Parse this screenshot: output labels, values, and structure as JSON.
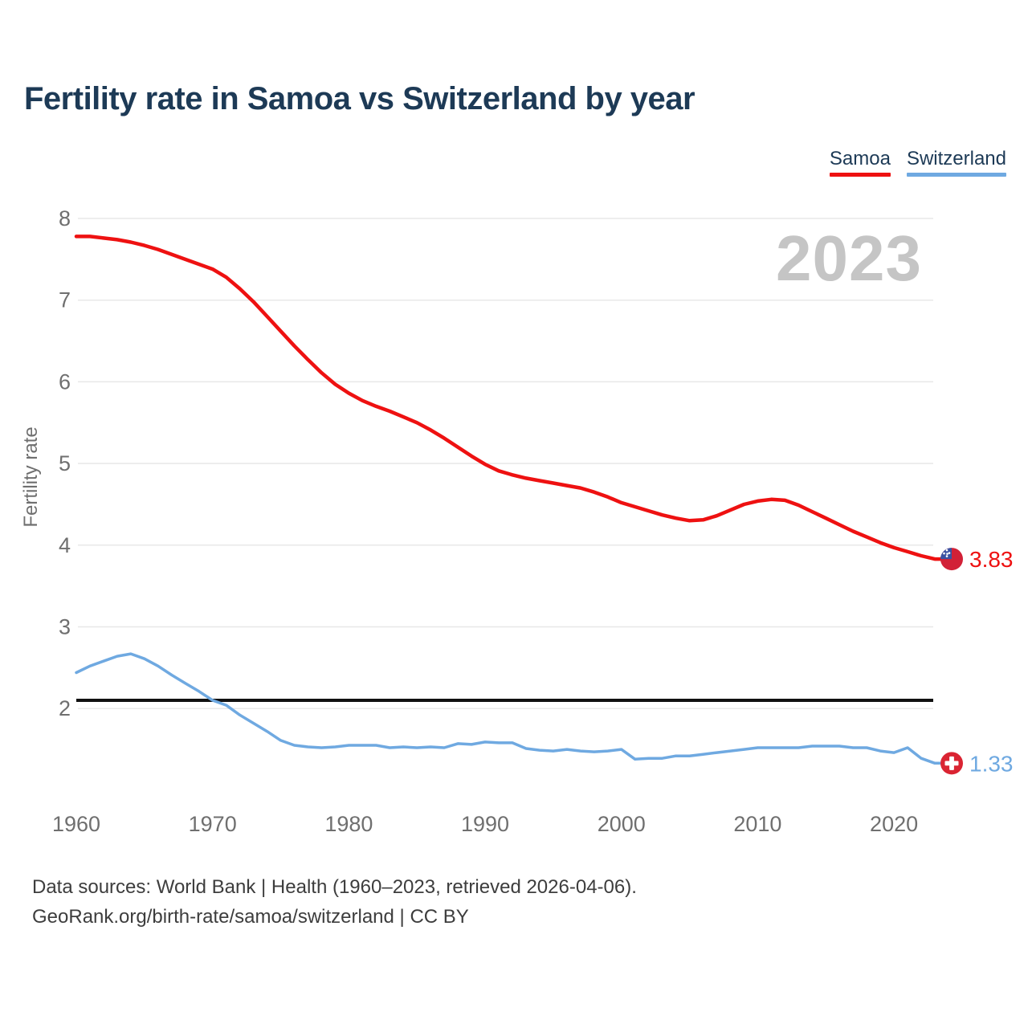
{
  "header": {
    "title": "Fertility rate in Samoa vs Switzerland by year"
  },
  "legend": [
    {
      "label": "Samoa",
      "color": "#ee1111"
    },
    {
      "label": "Switzerland",
      "color": "#6fa9e1"
    }
  ],
  "watermark": "2023",
  "colors": {
    "samoa_line": "#ee1111",
    "switzerland_line": "#6fa9e1",
    "samoa_flag_red": "#d22137",
    "samoa_flag_blue": "#3a52a3",
    "swiss_flag_red": "#da2432",
    "reference_line": "#111111",
    "grid": "#e8e8e8",
    "axis_text": "#6f6f6f",
    "watermark_gray": "#c5c5c5"
  },
  "chart_data": {
    "type": "line",
    "title": "Fertility rate in Samoa vs Switzerland by year",
    "xlabel": "",
    "ylabel": "Fertility rate",
    "x_ticks": [
      1960,
      1970,
      1980,
      1990,
      2000,
      2010,
      2020
    ],
    "y_ticks": [
      8,
      7,
      6,
      5,
      4,
      3,
      2
    ],
    "ylim": [
      1.0,
      8.3
    ],
    "grid": true,
    "legend_position": "top-right",
    "reference_line": {
      "value": 2.1,
      "color": "#111111"
    },
    "x": [
      1960,
      1961,
      1962,
      1963,
      1964,
      1965,
      1966,
      1967,
      1968,
      1969,
      1970,
      1971,
      1972,
      1973,
      1974,
      1975,
      1976,
      1977,
      1978,
      1979,
      1980,
      1981,
      1982,
      1983,
      1984,
      1985,
      1986,
      1987,
      1988,
      1989,
      1990,
      1991,
      1992,
      1993,
      1994,
      1995,
      1996,
      1997,
      1998,
      1999,
      2000,
      2001,
      2002,
      2003,
      2004,
      2005,
      2006,
      2007,
      2008,
      2009,
      2010,
      2011,
      2012,
      2013,
      2014,
      2015,
      2016,
      2017,
      2018,
      2019,
      2020,
      2021,
      2022,
      2023
    ],
    "series": [
      {
        "name": "Samoa",
        "color": "#ee1111",
        "flag": "samoa",
        "end_label": "3.83",
        "end_value": 3.83,
        "values": [
          7.78,
          7.78,
          7.76,
          7.74,
          7.71,
          7.67,
          7.62,
          7.56,
          7.5,
          7.44,
          7.38,
          7.28,
          7.14,
          6.98,
          6.8,
          6.62,
          6.44,
          6.27,
          6.11,
          5.97,
          5.86,
          5.77,
          5.7,
          5.64,
          5.57,
          5.5,
          5.41,
          5.31,
          5.2,
          5.09,
          4.99,
          4.91,
          4.86,
          4.82,
          4.79,
          4.76,
          4.73,
          4.7,
          4.65,
          4.59,
          4.52,
          4.47,
          4.42,
          4.37,
          4.33,
          4.3,
          4.31,
          4.36,
          4.43,
          4.5,
          4.54,
          4.56,
          4.55,
          4.49,
          4.41,
          4.33,
          4.25,
          4.17,
          4.1,
          4.03,
          3.97,
          3.92,
          3.87,
          3.83
        ]
      },
      {
        "name": "Switzerland",
        "color": "#6fa9e1",
        "flag": "switzerland",
        "end_label": "1.33",
        "end_value": 1.33,
        "values": [
          2.44,
          2.52,
          2.58,
          2.64,
          2.67,
          2.61,
          2.52,
          2.41,
          2.31,
          2.21,
          2.1,
          2.04,
          1.92,
          1.82,
          1.72,
          1.61,
          1.55,
          1.53,
          1.52,
          1.53,
          1.55,
          1.55,
          1.55,
          1.52,
          1.53,
          1.52,
          1.53,
          1.52,
          1.57,
          1.56,
          1.59,
          1.58,
          1.58,
          1.51,
          1.49,
          1.48,
          1.5,
          1.48,
          1.47,
          1.48,
          1.5,
          1.38,
          1.39,
          1.39,
          1.42,
          1.42,
          1.44,
          1.46,
          1.48,
          1.5,
          1.52,
          1.52,
          1.52,
          1.52,
          1.54,
          1.54,
          1.54,
          1.52,
          1.52,
          1.48,
          1.46,
          1.52,
          1.39,
          1.33
        ]
      }
    ]
  },
  "footer": {
    "line1": "Data sources: World Bank | Health (1960–2023, retrieved 2026-04-06).",
    "line2": "GeoRank.org/birth-rate/samoa/switzerland | CC BY"
  }
}
